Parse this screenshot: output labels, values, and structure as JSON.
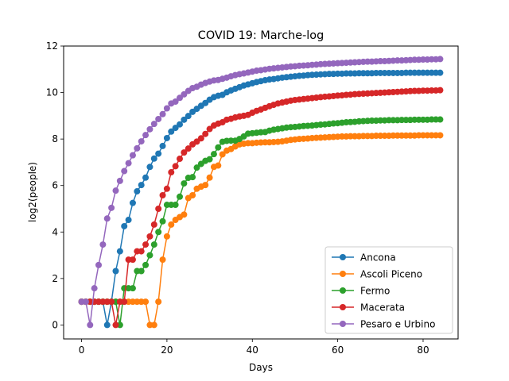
{
  "chart_data": {
    "type": "line",
    "title": "COVID 19: Marche-log",
    "xlabel": "Days",
    "ylabel": "log2(people)",
    "xlim": [
      -4.2,
      88.2
    ],
    "ylim": [
      -0.6,
      12
    ],
    "xticks": [
      0,
      20,
      40,
      60,
      80
    ],
    "yticks": [
      0,
      2,
      4,
      6,
      8,
      10,
      12
    ],
    "grid": false,
    "legend_position": "lower-right",
    "series": [
      {
        "name": "Ancona",
        "color": "#1f77b4",
        "values": [
          1,
          1,
          1,
          1,
          1,
          1,
          0,
          1,
          2.32,
          3.17,
          4.25,
          4.52,
          5.25,
          5.75,
          6.02,
          6.34,
          6.8,
          7.16,
          7.37,
          7.7,
          8.04,
          8.32,
          8.48,
          8.63,
          8.83,
          8.99,
          9.17,
          9.3,
          9.43,
          9.55,
          9.69,
          9.8,
          9.86,
          9.9,
          10.01,
          10.09,
          10.16,
          10.23,
          10.3,
          10.35,
          10.4,
          10.45,
          10.49,
          10.53,
          10.56,
          10.58,
          10.61,
          10.64,
          10.66,
          10.68,
          10.7,
          10.72,
          10.73,
          10.75,
          10.76,
          10.77,
          10.78,
          10.79,
          10.8,
          10.8,
          10.81,
          10.81,
          10.82,
          10.82,
          10.82,
          10.83,
          10.83,
          10.83,
          10.83,
          10.84,
          10.84,
          10.84,
          10.84,
          10.84,
          10.84,
          10.84,
          10.85,
          10.85,
          10.85,
          10.85,
          10.85,
          10.85,
          10.85,
          10.85,
          10.85
        ]
      },
      {
        "name": "Ascoli Piceno",
        "color": "#ff7f0e",
        "values": [
          1,
          1,
          1,
          1,
          1,
          1,
          1,
          1,
          1,
          1,
          1,
          1,
          1,
          1,
          1,
          1,
          0,
          0,
          1,
          2.81,
          3.81,
          4.32,
          4.52,
          4.64,
          4.75,
          5.46,
          5.58,
          5.86,
          5.95,
          6.02,
          6.34,
          6.8,
          6.86,
          7.34,
          7.5,
          7.57,
          7.68,
          7.77,
          7.8,
          7.82,
          7.82,
          7.84,
          7.85,
          7.86,
          7.86,
          7.87,
          7.88,
          7.9,
          7.93,
          7.96,
          7.98,
          8.0,
          8.01,
          8.02,
          8.04,
          8.05,
          8.06,
          8.07,
          8.08,
          8.09,
          8.1,
          8.11,
          8.11,
          8.12,
          8.12,
          8.12,
          8.13,
          8.13,
          8.13,
          8.14,
          8.14,
          8.14,
          8.14,
          8.15,
          8.15,
          8.15,
          8.15,
          8.15,
          8.15,
          8.16,
          8.16,
          8.16,
          8.16,
          8.16,
          8.16
        ]
      },
      {
        "name": "Fermo",
        "color": "#2ca02c",
        "values": [
          1,
          1,
          1,
          1,
          1,
          1,
          1,
          1,
          1,
          0,
          1.58,
          1.58,
          1.58,
          2.32,
          2.32,
          2.58,
          3,
          3.46,
          4.0,
          4.46,
          5.17,
          5.17,
          5.17,
          5.52,
          6.09,
          6.33,
          6.36,
          6.77,
          6.93,
          7.06,
          7.13,
          7.35,
          7.64,
          7.88,
          7.92,
          7.93,
          7.93,
          8.0,
          8.11,
          8.23,
          8.25,
          8.27,
          8.29,
          8.3,
          8.36,
          8.4,
          8.43,
          8.46,
          8.49,
          8.51,
          8.52,
          8.54,
          8.56,
          8.57,
          8.58,
          8.6,
          8.62,
          8.63,
          8.65,
          8.67,
          8.68,
          8.7,
          8.72,
          8.73,
          8.74,
          8.76,
          8.77,
          8.78,
          8.79,
          8.79,
          8.8,
          8.8,
          8.81,
          8.81,
          8.81,
          8.82,
          8.82,
          8.82,
          8.83,
          8.83,
          8.83,
          8.83,
          8.84,
          8.84,
          8.84
        ]
      },
      {
        "name": "Macerata",
        "color": "#d62728",
        "values": [
          1,
          1,
          1,
          1,
          1,
          1,
          1,
          1,
          0,
          1,
          1,
          2.81,
          2.81,
          3.17,
          3.17,
          3.46,
          3.81,
          4.32,
          5.0,
          5.58,
          5.86,
          6.57,
          6.83,
          7.15,
          7.42,
          7.59,
          7.77,
          7.89,
          8.03,
          8.22,
          8.43,
          8.58,
          8.66,
          8.72,
          8.83,
          8.87,
          8.93,
          8.97,
          9.0,
          9.04,
          9.13,
          9.21,
          9.27,
          9.34,
          9.41,
          9.47,
          9.53,
          9.57,
          9.61,
          9.65,
          9.68,
          9.7,
          9.72,
          9.74,
          9.76,
          9.78,
          9.8,
          9.82,
          9.83,
          9.85,
          9.87,
          9.88,
          9.9,
          9.91,
          9.93,
          9.94,
          9.95,
          9.96,
          9.97,
          9.98,
          9.99,
          10.0,
          10.01,
          10.02,
          10.03,
          10.04,
          10.05,
          10.06,
          10.07,
          10.07,
          10.08,
          10.08,
          10.09,
          10.09,
          10.1
        ]
      },
      {
        "name": "Pesaro e Urbino",
        "color": "#9467bd",
        "values": [
          1,
          1,
          0,
          1.58,
          2.58,
          3.46,
          4.58,
          5.04,
          5.78,
          6.2,
          6.62,
          6.96,
          7.3,
          7.6,
          7.9,
          8.17,
          8.42,
          8.65,
          8.86,
          9.07,
          9.32,
          9.53,
          9.61,
          9.77,
          9.92,
          10.07,
          10.19,
          10.25,
          10.34,
          10.41,
          10.47,
          10.52,
          10.54,
          10.59,
          10.64,
          10.7,
          10.75,
          10.79,
          10.82,
          10.86,
          10.9,
          10.94,
          10.96,
          10.99,
          11.02,
          11.04,
          11.06,
          11.08,
          11.1,
          11.12,
          11.13,
          11.15,
          11.16,
          11.17,
          11.19,
          11.2,
          11.22,
          11.23,
          11.24,
          11.25,
          11.26,
          11.27,
          11.28,
          11.29,
          11.3,
          11.31,
          11.32,
          11.33,
          11.33,
          11.34,
          11.35,
          11.35,
          11.36,
          11.37,
          11.38,
          11.38,
          11.39,
          11.4,
          11.41,
          11.41,
          11.42,
          11.42,
          11.43,
          11.43,
          11.44
        ]
      }
    ]
  }
}
